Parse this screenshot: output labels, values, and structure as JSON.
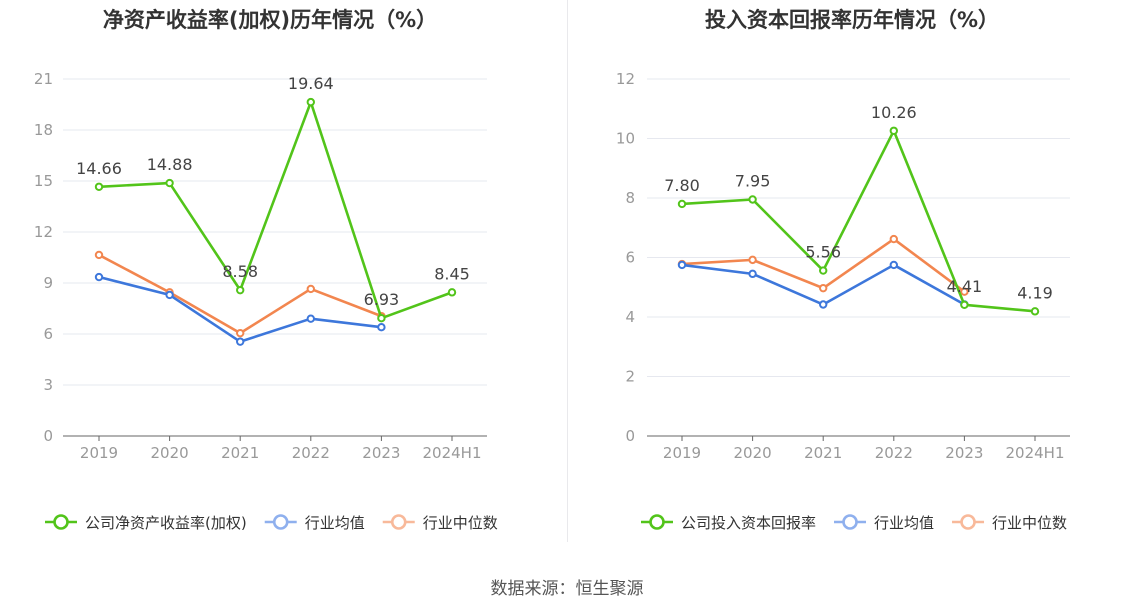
{
  "source_label": "数据来源：恒生聚源",
  "chart_data": [
    {
      "type": "line",
      "title": "净资产收益率(加权)历年情况（%）",
      "categories": [
        "2019",
        "2020",
        "2021",
        "2022",
        "2023",
        "2024H1"
      ],
      "yticks": [
        0,
        3,
        6,
        9,
        12,
        15,
        18,
        21
      ],
      "ylim": [
        0,
        21
      ],
      "grid": true,
      "legend_position": "bottom",
      "series": [
        {
          "name": "公司净资产收益率(加权)",
          "color": "#52c41a",
          "values": [
            14.66,
            14.88,
            8.58,
            19.64,
            6.93,
            8.45
          ],
          "labels": [
            "14.66",
            "14.88",
            "8.58",
            "19.64",
            "6.93",
            "8.45"
          ]
        },
        {
          "name": "行业均值",
          "color": "#3d77db",
          "values": [
            9.35,
            8.3,
            5.55,
            6.9,
            6.4,
            null
          ]
        },
        {
          "name": "行业中位数",
          "color": "#f2864f",
          "values": [
            10.65,
            8.45,
            6.05,
            8.65,
            7.05,
            null
          ]
        }
      ]
    },
    {
      "type": "line",
      "title": "投入资本回报率历年情况（%）",
      "categories": [
        "2019",
        "2020",
        "2021",
        "2022",
        "2023",
        "2024H1"
      ],
      "yticks": [
        0,
        2,
        4,
        6,
        8,
        10,
        12
      ],
      "ylim": [
        0,
        12
      ],
      "grid": true,
      "legend_position": "bottom",
      "series": [
        {
          "name": "公司投入资本回报率",
          "color": "#52c41a",
          "values": [
            7.8,
            7.95,
            5.56,
            10.26,
            4.41,
            4.19
          ],
          "labels": [
            "7.80",
            "7.95",
            "5.56",
            "10.26",
            "4.41",
            "4.19"
          ]
        },
        {
          "name": "行业均值",
          "color": "#3d77db",
          "values": [
            5.75,
            5.45,
            4.42,
            5.75,
            4.42,
            null
          ]
        },
        {
          "name": "行业中位数",
          "color": "#f2864f",
          "values": [
            5.78,
            5.92,
            4.97,
            6.62,
            4.85,
            null
          ]
        }
      ]
    }
  ]
}
